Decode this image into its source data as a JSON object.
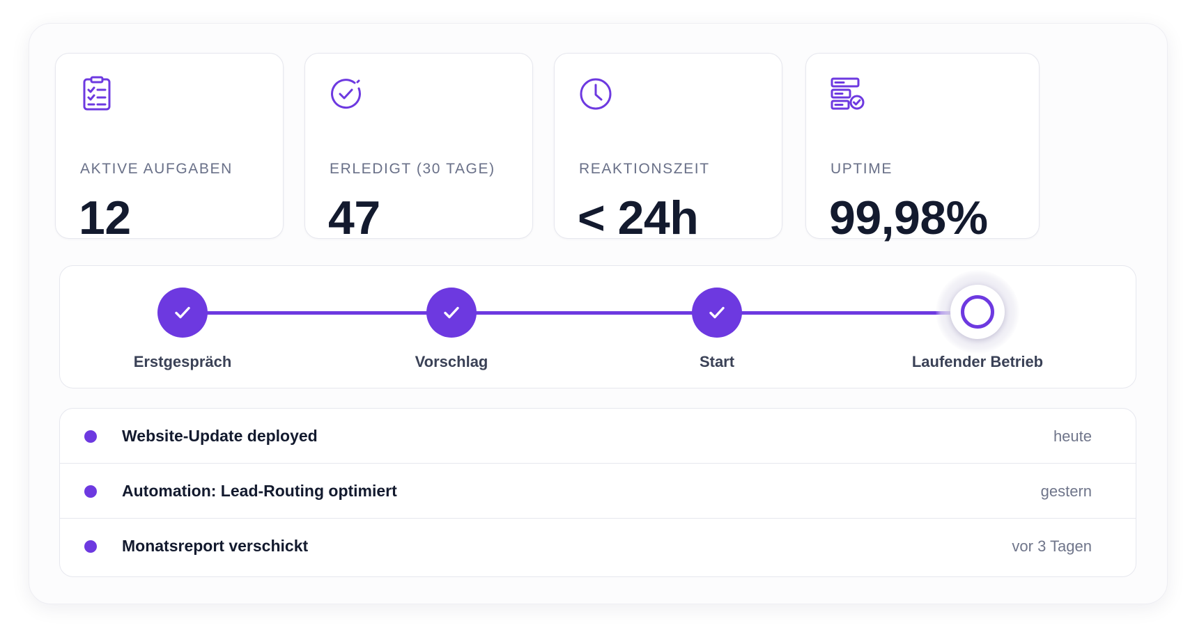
{
  "colors": {
    "accent": "#6d39e0",
    "text_dark": "#131a2e",
    "text_muted": "#697088",
    "border": "#e6e7ee"
  },
  "stats": [
    {
      "icon": "clipboard-checklist-icon",
      "label": "AKTIVE AUFGABEN",
      "value": "12"
    },
    {
      "icon": "check-circle-icon",
      "label": "ERLEDIGT (30 TAGE)",
      "value": "47"
    },
    {
      "icon": "clock-icon",
      "label": "REAKTIONSZEIT",
      "value": "< 24h"
    },
    {
      "icon": "server-check-icon",
      "label": "UPTIME",
      "value": "99,98%"
    }
  ],
  "stepper": {
    "steps": [
      {
        "label": "Erstgespräch",
        "status": "completed"
      },
      {
        "label": "Vorschlag",
        "status": "completed"
      },
      {
        "label": "Start",
        "status": "completed"
      },
      {
        "label": "Laufender Betrieb",
        "status": "current"
      }
    ]
  },
  "activity": {
    "items": [
      {
        "title": "Website-Update deployed",
        "time": "heute"
      },
      {
        "title": "Automation: Lead-Routing optimiert",
        "time": "gestern"
      },
      {
        "title": "Monatsreport verschickt",
        "time": "vor 3 Tagen"
      }
    ]
  }
}
